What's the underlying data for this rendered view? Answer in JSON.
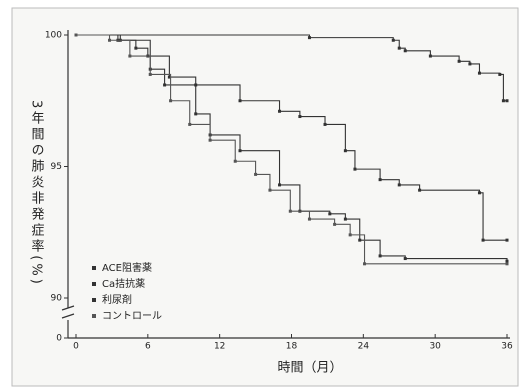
{
  "chart_data": {
    "type": "line",
    "step": "post",
    "ylabel": "3年間の肺炎非発症率(%)",
    "xlabel": "時間（月）",
    "xlim": [
      0,
      36
    ],
    "xticks": [
      0,
      6,
      12,
      18,
      24,
      30,
      36
    ],
    "ylim": [
      0,
      100
    ],
    "y_break": [
      0,
      90
    ],
    "yticks": [
      0,
      90,
      95,
      100
    ],
    "legend": "lower left",
    "series": [
      {
        "name": "ACE阻害薬",
        "color": "#333333",
        "x": [
          0,
          19.5,
          26.5,
          27,
          27.5,
          29.6,
          32,
          32.9,
          33.7,
          35.4,
          35.7,
          36
        ],
        "values": [
          100,
          99.9,
          99.8,
          99.5,
          99.4,
          99.2,
          99.0,
          98.9,
          98.55,
          98.5,
          97.5,
          97.5
        ]
      },
      {
        "name": "Ca拮抗薬",
        "color": "#333333",
        "x": [
          0,
          3.5,
          5,
          6,
          7.8,
          10,
          13.7,
          17,
          18.7,
          20.8,
          22.5,
          23.3,
          25.4,
          27,
          28.7,
          33.7,
          34,
          36
        ],
        "values": [
          100,
          99.8,
          99.5,
          99.2,
          98.4,
          98.1,
          97.5,
          97.1,
          96.9,
          96.6,
          95.6,
          94.9,
          94.5,
          94.3,
          94.1,
          94.0,
          92.2,
          92.2
        ]
      },
      {
        "name": "利尿剤",
        "color": "#333333",
        "x": [
          0,
          3.7,
          6.2,
          7.4,
          10,
          11.2,
          13.7,
          17,
          18.7,
          21.2,
          22.5,
          23.7,
          25.4,
          27.5,
          36
        ],
        "values": [
          100,
          99.8,
          98.7,
          98.1,
          97.0,
          96.2,
          95.6,
          94.3,
          93.3,
          93.2,
          93.0,
          92.2,
          91.6,
          91.5,
          91.4
        ]
      },
      {
        "name": "コントロール",
        "color": "#555555",
        "x": [
          0,
          2.8,
          4.5,
          6.2,
          7.9,
          9.5,
          11.2,
          13.3,
          15,
          16.2,
          17.9,
          19.5,
          21.6,
          22.9,
          24.1,
          36
        ],
        "values": [
          100,
          99.8,
          99.2,
          98.5,
          97.5,
          96.6,
          96.0,
          95.2,
          94.7,
          94.1,
          93.3,
          93.0,
          92.8,
          92.4,
          91.3,
          91.3
        ]
      }
    ]
  }
}
